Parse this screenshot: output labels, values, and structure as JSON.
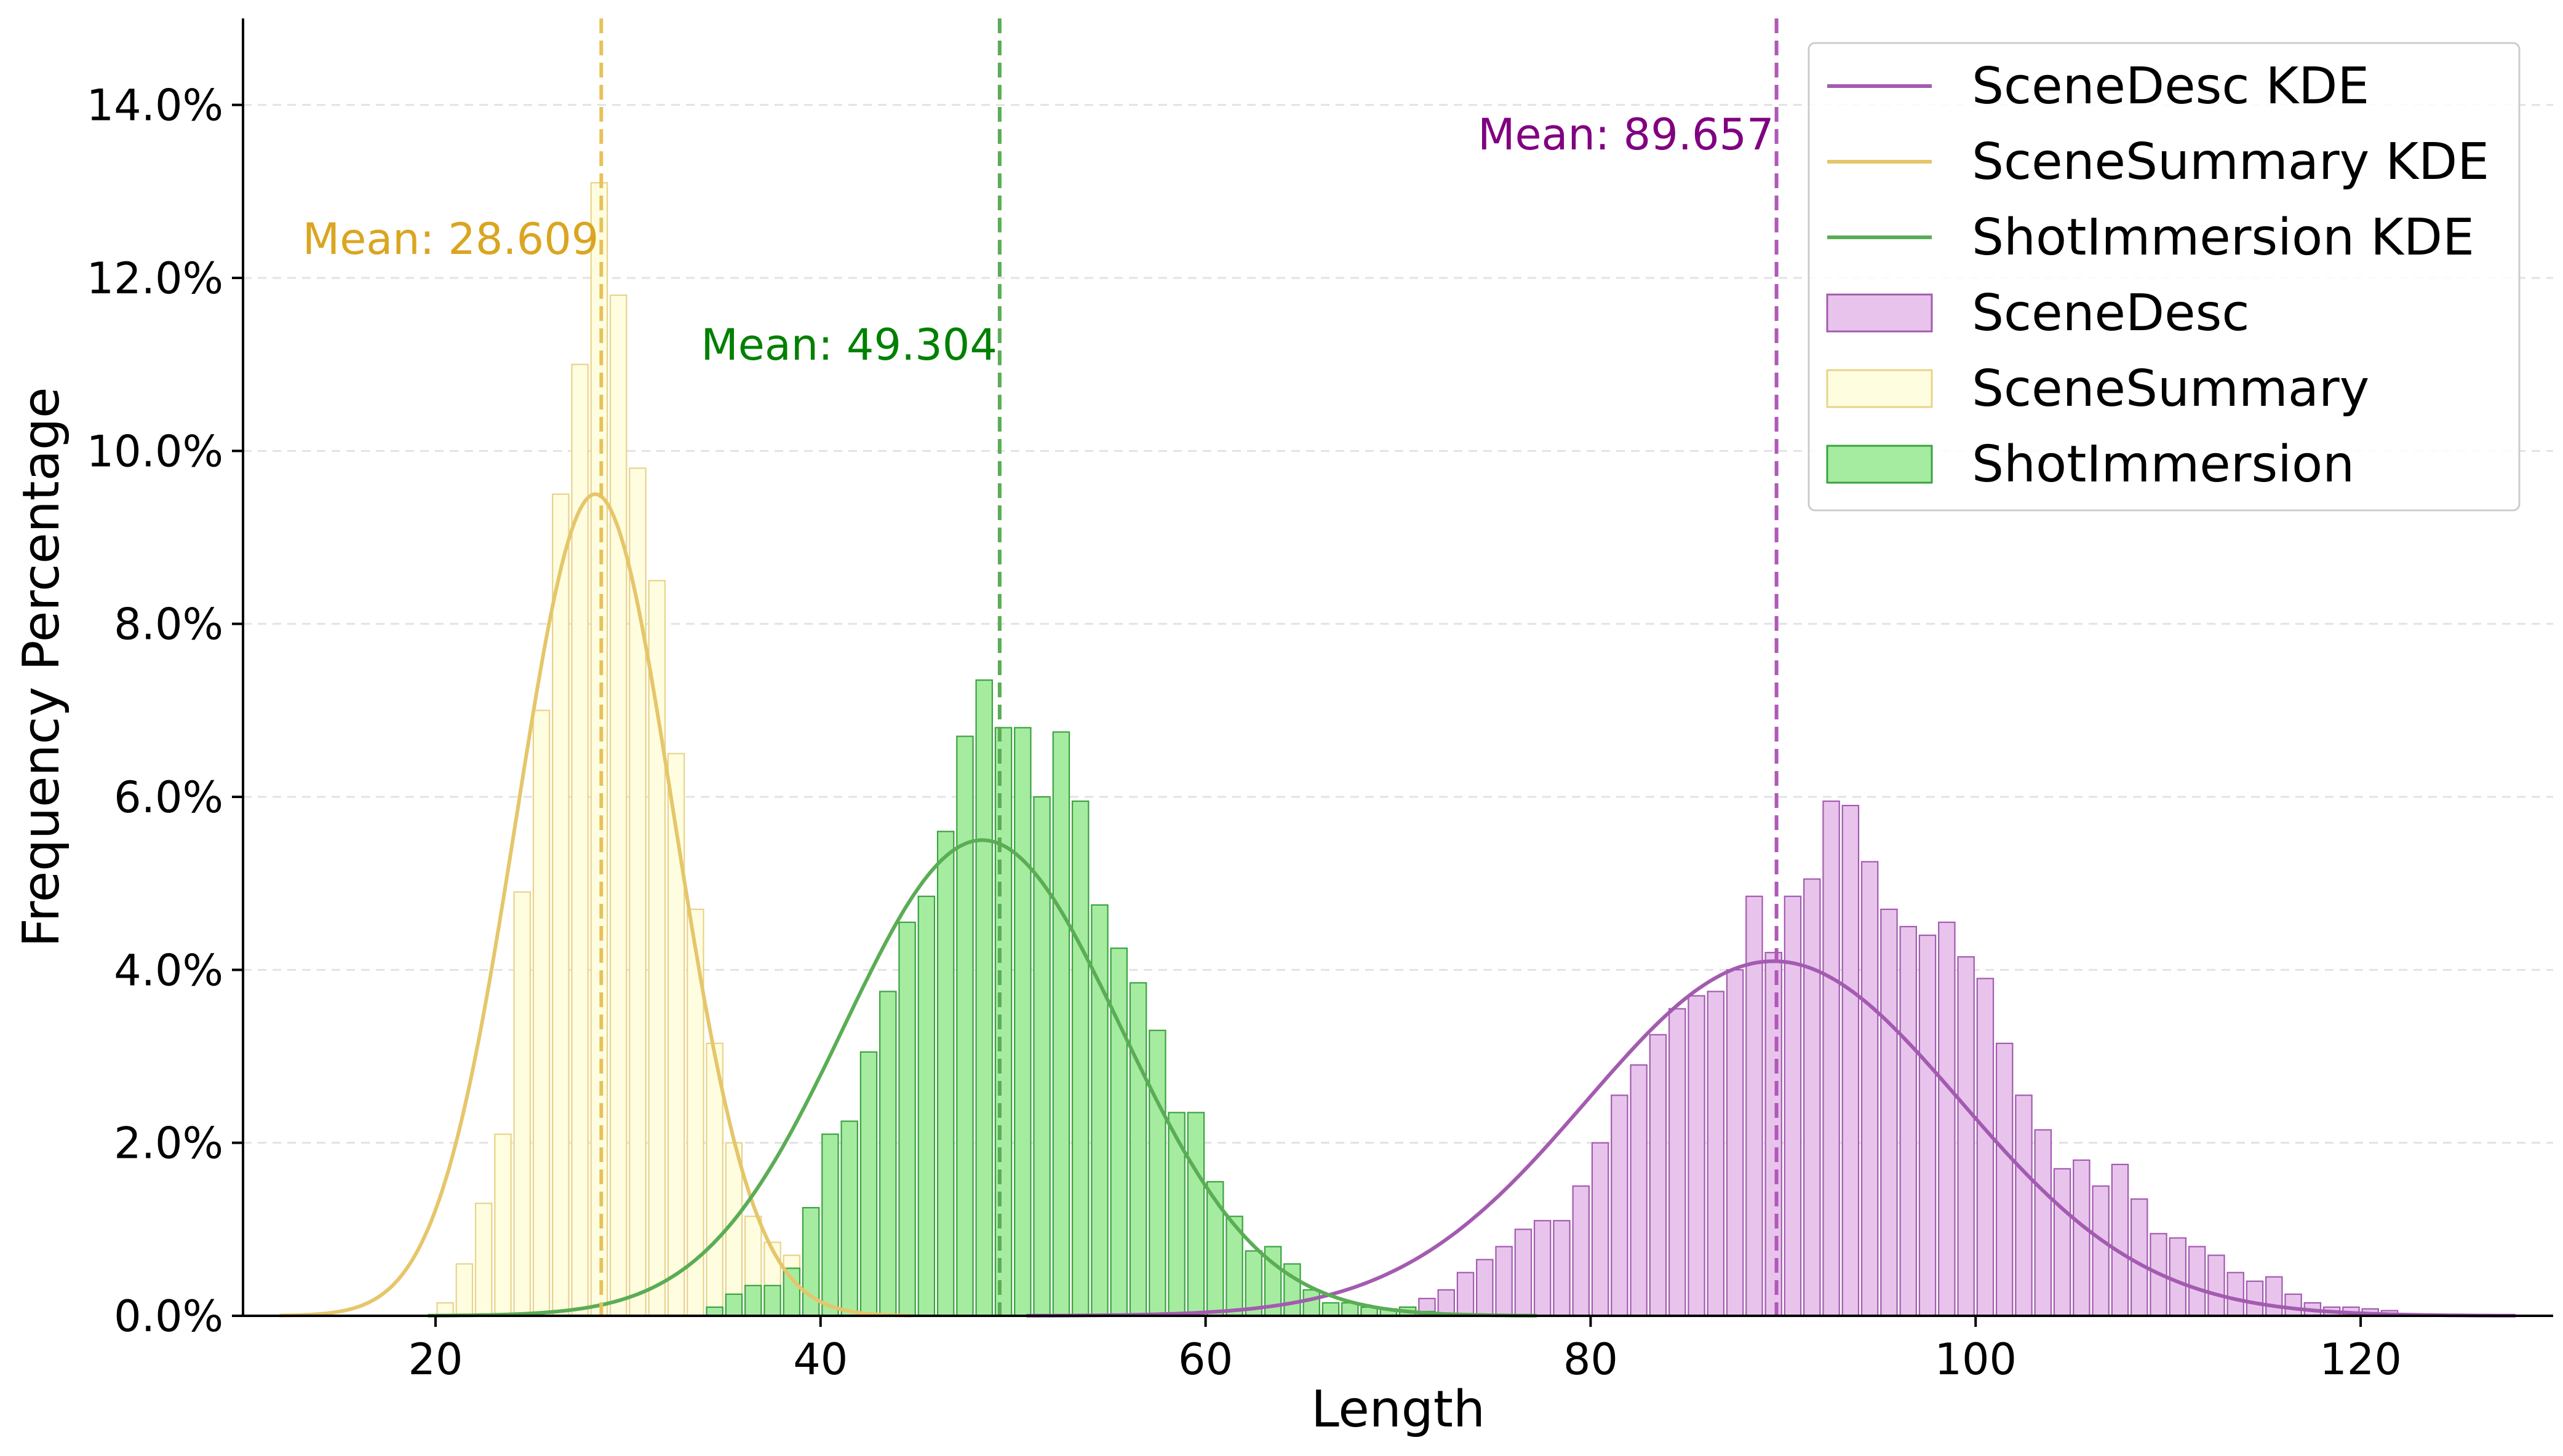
{
  "chart_data": {
    "type": "bar",
    "xlabel": "Length",
    "ylabel": "Frequency Percentage",
    "xlim": [
      10,
      130
    ],
    "ylim": [
      0,
      15
    ],
    "x_ticks": [
      20,
      40,
      60,
      80,
      100,
      120
    ],
    "x_tick_labels": [
      "20",
      "40",
      "60",
      "80",
      "100",
      "120"
    ],
    "y_ticks": [
      0,
      2,
      4,
      6,
      8,
      10,
      12,
      14
    ],
    "y_tick_labels": [
      "0.0%",
      "2.0%",
      "4.0%",
      "6.0%",
      "8.0%",
      "10.0%",
      "12.0%",
      "14.0%"
    ],
    "grid": "horizontal dashed",
    "legend_position": "top-right",
    "bin_width": 1,
    "series": [
      {
        "name": "SceneDesc",
        "fill": "#e8c4ec",
        "edge": "#a35bb0",
        "x_start": 64,
        "values": [
          0.05,
          0.06,
          0.08,
          0.05,
          0.08,
          0.05,
          0.1,
          0.2,
          0.3,
          0.5,
          0.65,
          0.8,
          1.0,
          1.1,
          1.1,
          1.5,
          2.0,
          2.55,
          2.9,
          3.25,
          3.55,
          3.7,
          3.75,
          4.0,
          4.85,
          4.2,
          4.85,
          5.05,
          5.95,
          5.9,
          5.25,
          4.7,
          4.5,
          4.4,
          4.55,
          4.15,
          3.9,
          3.15,
          2.55,
          2.15,
          1.7,
          1.8,
          1.5,
          1.75,
          1.35,
          0.95,
          0.9,
          0.8,
          0.7,
          0.5,
          0.4,
          0.45,
          0.25,
          0.15,
          0.1,
          0.1,
          0.08,
          0.06
        ],
        "kde_mean": 89.5,
        "kde_sd": 9.7
      },
      {
        "name": "SceneSummary",
        "fill": "#fffde0",
        "edge": "#e8d38a",
        "x_start": 20,
        "values": [
          0.15,
          0.6,
          1.3,
          2.1,
          4.9,
          7.0,
          9.5,
          11.0,
          13.1,
          11.8,
          9.8,
          8.5,
          6.5,
          4.7,
          3.15,
          2.0,
          1.15,
          0.85,
          0.7,
          0.5,
          0.2,
          0.1
        ],
        "kde_mean": 28.3,
        "kde_sd": 4.1
      },
      {
        "name": "ShotImmersion",
        "fill": "#a6eca0",
        "edge": "#3aa341",
        "x_start": 34,
        "values": [
          0.1,
          0.25,
          0.35,
          0.35,
          0.55,
          1.25,
          2.1,
          2.25,
          3.05,
          3.75,
          4.55,
          4.85,
          5.6,
          6.7,
          7.35,
          6.8,
          6.8,
          6.0,
          6.75,
          5.95,
          4.75,
          4.25,
          3.85,
          3.3,
          2.35,
          2.35,
          1.55,
          1.15,
          0.75,
          0.8,
          0.6,
          0.3,
          0.15,
          0.15,
          0.1,
          0.08,
          0.1,
          0.05
        ],
        "kde_mean": 48.4,
        "kde_sd": 7.2
      }
    ],
    "kde_lines": [
      {
        "name": "SceneDesc KDE",
        "color": "#a35bb0",
        "peak": 4.1
      },
      {
        "name": "SceneSummary KDE",
        "color": "#e5c66a",
        "peak": 9.5
      },
      {
        "name": "ShotImmersion KDE",
        "color": "#5aad55",
        "peak": 5.5
      }
    ],
    "mean_lines": [
      {
        "series": "SceneDesc",
        "value": 89.657,
        "label": "Mean: 89.657",
        "color": "#b058b8",
        "text_color": "#800080"
      },
      {
        "series": "SceneSummary",
        "value": 28.609,
        "label": "Mean: 28.609",
        "color": "#e7c15a",
        "text_color": "#daa520"
      },
      {
        "series": "ShotImmersion",
        "value": 49.304,
        "label": "Mean: 49.304",
        "color": "#5aad55",
        "text_color": "#008000"
      }
    ],
    "legend": [
      {
        "label": "SceneDesc KDE",
        "kind": "line",
        "color": "#a35bb0"
      },
      {
        "label": "SceneSummary KDE",
        "kind": "line",
        "color": "#e5c66a"
      },
      {
        "label": "ShotImmersion KDE",
        "kind": "line",
        "color": "#5aad55"
      },
      {
        "label": "SceneDesc",
        "kind": "patch",
        "color": "#e8c4ec",
        "edge": "#a35bb0"
      },
      {
        "label": "SceneSummary",
        "kind": "patch",
        "color": "#fffde0",
        "edge": "#e8d38a"
      },
      {
        "label": "ShotImmersion",
        "kind": "patch",
        "color": "#a6eca0",
        "edge": "#3aa341"
      }
    ]
  }
}
